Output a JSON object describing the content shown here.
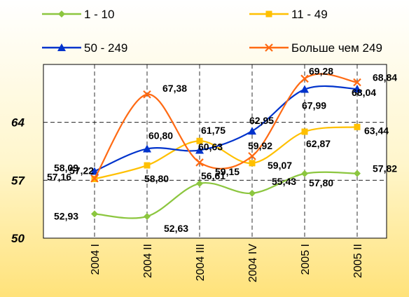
{
  "chart_data": {
    "type": "line",
    "categories": [
      "2004 I",
      "2004 II",
      "2004 III",
      "2004 IV",
      "2005 I",
      "2005 II"
    ],
    "ylim": [
      50,
      71
    ],
    "yticks": [
      50,
      57,
      64
    ],
    "ytick_labels": [
      "50",
      "57",
      "64"
    ],
    "grid": true,
    "legend_position": "top",
    "series": [
      {
        "name": "1 - 10",
        "color": "#8cc63f",
        "marker": "diamond",
        "values": [
          52.93,
          52.63,
          56.61,
          55.43,
          57.8,
          57.82
        ],
        "labels": [
          "52,93",
          "52,63",
          "56,61",
          "55,43",
          "57,80",
          "57,82"
        ]
      },
      {
        "name": "11 - 49",
        "color": "#ffc000",
        "marker": "square",
        "values": [
          57.16,
          58.8,
          61.75,
          59.07,
          62.87,
          63.44
        ],
        "labels": [
          "57,16",
          "58,80",
          "61,75",
          "59,07",
          "62,87",
          "63,44"
        ]
      },
      {
        "name": "50 - 249",
        "color": "#0033cc",
        "marker": "triangle",
        "values": [
          58.09,
          60.8,
          60.63,
          62.95,
          67.99,
          68.04
        ],
        "labels": [
          "58,09",
          "60,80",
          "60,63",
          "62,95",
          "67,99",
          "68,04"
        ]
      },
      {
        "name": "Больше чем 249",
        "color": "#ff6a13",
        "marker": "x",
        "values": [
          57.22,
          67.38,
          59.15,
          59.92,
          69.28,
          68.84
        ],
        "labels": [
          "57,22",
          "67,38",
          "59,15",
          "59,92",
          "69,28",
          "68,84"
        ]
      }
    ]
  }
}
